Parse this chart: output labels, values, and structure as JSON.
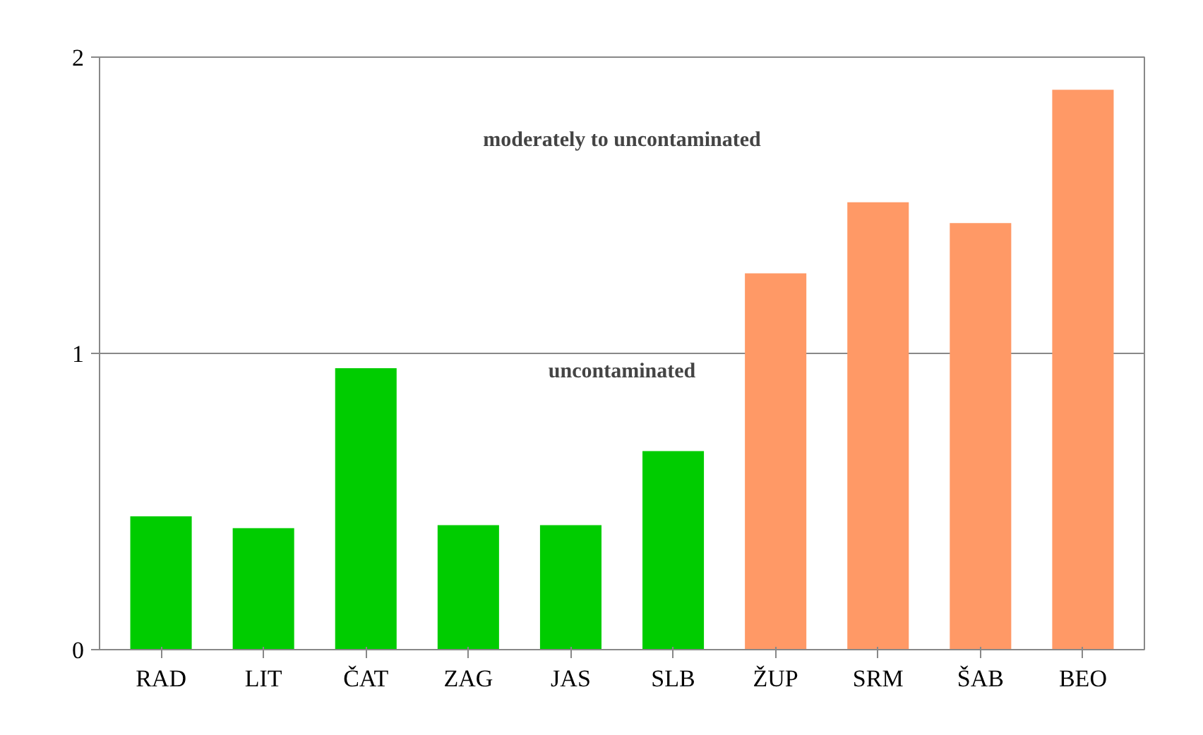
{
  "chart_data": {
    "type": "bar",
    "categories": [
      "RAD",
      "LIT",
      "ČAT",
      "ZAG",
      "JAS",
      "SLB",
      "ŽUP",
      "SRM",
      "ŠAB",
      "BEO"
    ],
    "values": [
      0.45,
      0.41,
      0.95,
      0.42,
      0.42,
      0.67,
      1.27,
      1.51,
      1.44,
      1.89
    ],
    "colors": [
      "#00cc00",
      "#00cc00",
      "#00cc00",
      "#00cc00",
      "#00cc00",
      "#00cc00",
      "#ff9966",
      "#ff9966",
      "#ff9966",
      "#ff9966"
    ],
    "ylim": [
      0,
      2
    ],
    "yticks": [
      0,
      1,
      2
    ],
    "grid": "y",
    "annotations": [
      "moderately to uncontaminated",
      "uncontaminated"
    ]
  }
}
